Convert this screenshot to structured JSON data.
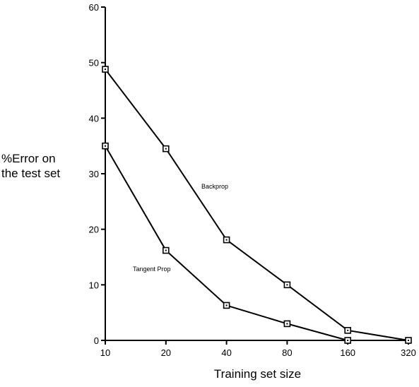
{
  "chart_data": {
    "type": "line",
    "title": "",
    "xlabel": "Training set size",
    "ylabel_lines": [
      "%Error on",
      "the test set"
    ],
    "categories": [
      "10",
      "20",
      "40",
      "80",
      "160",
      "320"
    ],
    "ylim": [
      0,
      60
    ],
    "yticks": [
      0,
      10,
      20,
      30,
      40,
      50,
      60
    ],
    "grid": false,
    "series": [
      {
        "name": "Backprop",
        "values": [
          48.8,
          34.5,
          18.1,
          10.0,
          1.8,
          0.0
        ],
        "color": "#000000"
      },
      {
        "name": "Tangent Prop",
        "values": [
          35.0,
          16.2,
          6.3,
          3.0,
          0.0,
          null
        ],
        "color": "#000000"
      }
    ],
    "marker": "square-with-dot"
  }
}
